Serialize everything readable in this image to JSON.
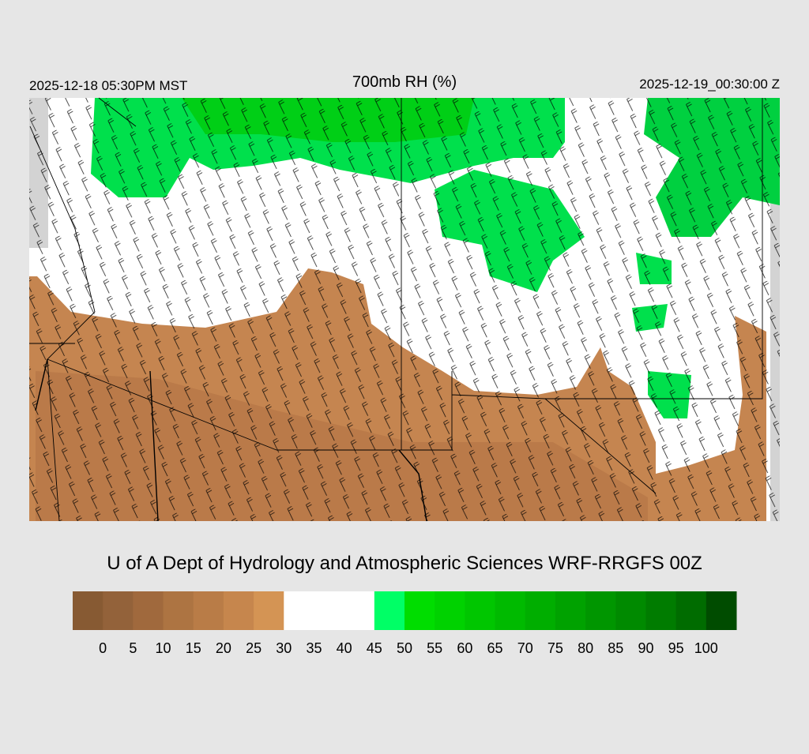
{
  "header": {
    "valid_local": "2025-12-18 05:30PM MST",
    "title": "700mb RH (%)",
    "valid_utc": "2025-12-19_00:30:00 Z"
  },
  "credit": "U of A Dept of Hydrology and Atmospheric Sciences WRF-RRGFS 00Z",
  "colorbar": {
    "ticks": [
      0,
      5,
      10,
      15,
      20,
      25,
      30,
      35,
      40,
      45,
      50,
      55,
      60,
      65,
      70,
      75,
      80,
      85,
      90,
      95,
      100
    ],
    "colors": [
      "#875a33",
      "#93623a",
      "#a0693d",
      "#ad7442",
      "#b97c47",
      "#c6864d",
      "#d49454",
      "#ffffff",
      "#ffffff",
      "#ffffff",
      "#00ff66",
      "#00dd00",
      "#00d200",
      "#00c600",
      "#00ba00",
      "#00ae00",
      "#00a200",
      "#009600",
      "#008a00",
      "#007c00",
      "#006c00",
      "#004c00"
    ]
  }
}
